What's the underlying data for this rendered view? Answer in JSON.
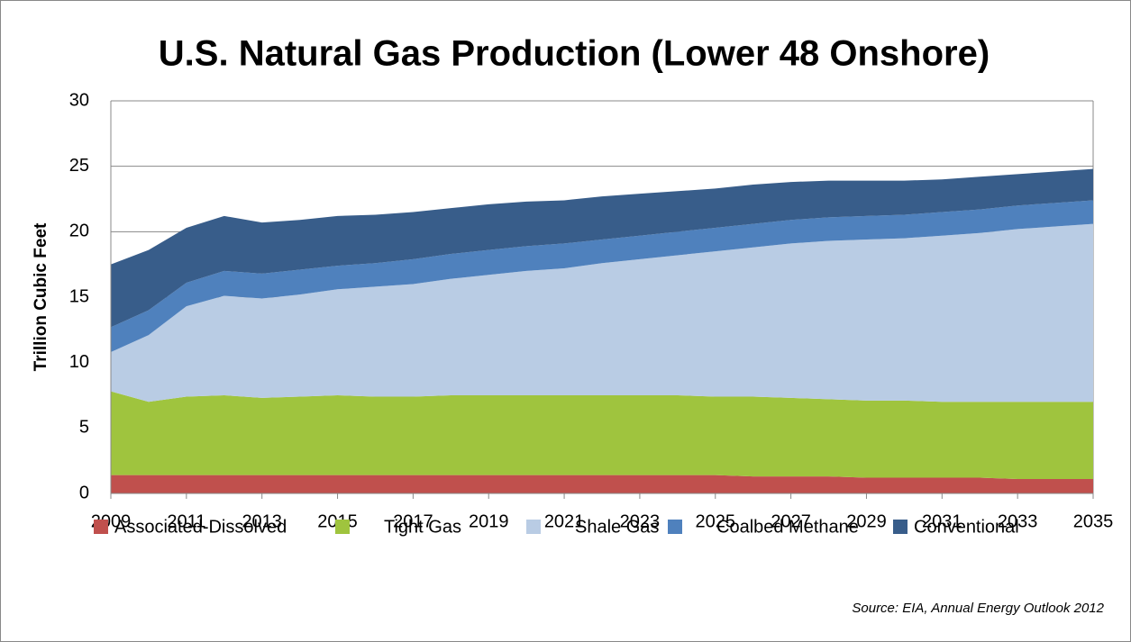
{
  "chart_data": {
    "type": "area",
    "stacked": true,
    "title": "U.S. Natural Gas Production (Lower 48 Onshore)",
    "y_label": "Trillion Cubic Feet",
    "source": "Source: EIA, Annual Energy Outlook 2012",
    "x": [
      2009,
      2010,
      2011,
      2012,
      2013,
      2014,
      2015,
      2016,
      2017,
      2018,
      2019,
      2020,
      2021,
      2022,
      2023,
      2024,
      2025,
      2026,
      2027,
      2028,
      2029,
      2030,
      2031,
      2032,
      2033,
      2034,
      2035
    ],
    "xlim": [
      2009,
      2035
    ],
    "xticks": [
      2009,
      2011,
      2013,
      2015,
      2017,
      2019,
      2021,
      2023,
      2025,
      2027,
      2029,
      2031,
      2033,
      2035
    ],
    "ylim": [
      0,
      30
    ],
    "yticks": [
      0,
      5,
      10,
      15,
      20,
      25,
      30
    ],
    "grid": true,
    "legend": "bottom",
    "series": [
      {
        "name": "Associated-Dissolved",
        "color": "#c0504d",
        "values": [
          1.4,
          1.4,
          1.4,
          1.4,
          1.4,
          1.4,
          1.4,
          1.4,
          1.4,
          1.4,
          1.4,
          1.4,
          1.4,
          1.4,
          1.4,
          1.4,
          1.4,
          1.3,
          1.3,
          1.3,
          1.2,
          1.2,
          1.2,
          1.2,
          1.1,
          1.1,
          1.1
        ]
      },
      {
        "name": "Tight Gas",
        "color": "#9fc43e",
        "values": [
          6.4,
          5.6,
          6.0,
          6.1,
          5.9,
          6.0,
          6.1,
          6.0,
          6.0,
          6.1,
          6.1,
          6.1,
          6.1,
          6.1,
          6.1,
          6.1,
          6.0,
          6.1,
          6.0,
          5.9,
          5.9,
          5.9,
          5.8,
          5.8,
          5.9,
          5.9,
          5.9
        ]
      },
      {
        "name": "Shale Gas",
        "color": "#b9cce4",
        "values": [
          3.0,
          5.1,
          6.9,
          7.6,
          7.6,
          7.8,
          8.1,
          8.4,
          8.6,
          8.9,
          9.2,
          9.5,
          9.7,
          10.1,
          10.4,
          10.7,
          11.1,
          11.4,
          11.8,
          12.1,
          12.3,
          12.4,
          12.7,
          12.9,
          13.2,
          13.4,
          13.6
        ]
      },
      {
        "name": "Coalbed Methane",
        "color": "#4f81bd",
        "values": [
          1.9,
          1.9,
          1.8,
          1.9,
          1.9,
          1.9,
          1.8,
          1.8,
          1.9,
          1.9,
          1.9,
          1.9,
          1.9,
          1.8,
          1.8,
          1.8,
          1.8,
          1.8,
          1.8,
          1.8,
          1.8,
          1.8,
          1.8,
          1.8,
          1.8,
          1.8,
          1.8
        ]
      },
      {
        "name": "Conventional",
        "color": "#385d8a",
        "values": [
          4.8,
          4.6,
          4.2,
          4.2,
          3.9,
          3.8,
          3.8,
          3.7,
          3.6,
          3.5,
          3.5,
          3.4,
          3.3,
          3.3,
          3.2,
          3.1,
          3.0,
          3.0,
          2.9,
          2.8,
          2.7,
          2.6,
          2.5,
          2.5,
          2.4,
          2.4,
          2.4
        ]
      }
    ]
  }
}
